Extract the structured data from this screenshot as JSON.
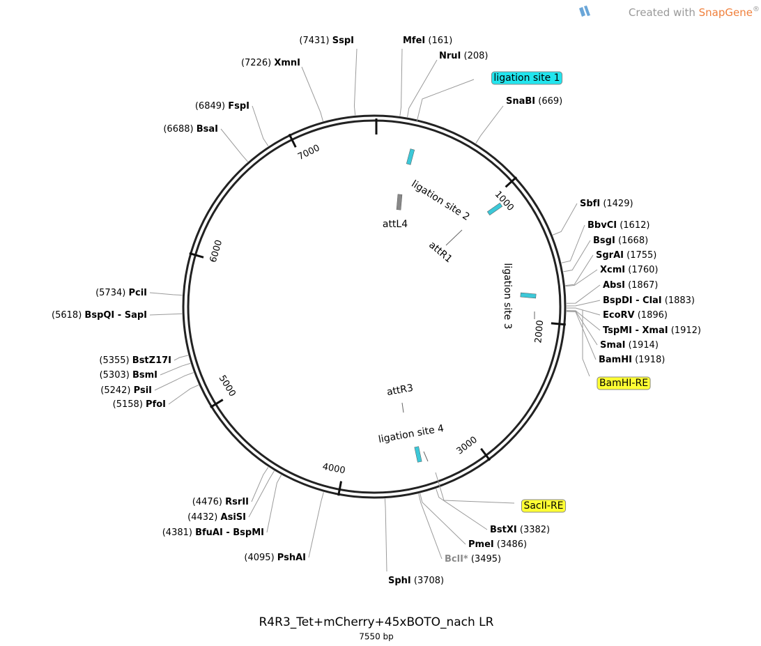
{
  "watermark": {
    "text": "Created with",
    "brand": "SnapGene",
    "mark": "®"
  },
  "plasmid": {
    "name": "R4R3_Tet+mCherry+45xBOTO_nach LR",
    "length": {
      "value": 7550,
      "label": "7550 bp"
    }
  },
  "ticks": [
    1000,
    2000,
    3000,
    4000,
    5000,
    6000,
    7000
  ],
  "sites": [
    {
      "name": "MfeI",
      "position": {
        "value": 161,
        "label": "(161)"
      }
    },
    {
      "name": "NruI",
      "position": {
        "value": 208,
        "label": "(208)"
      }
    },
    {
      "name": "SnaBI",
      "position": {
        "value": 669,
        "label": "(669)"
      }
    },
    {
      "name": "SbfI",
      "position": {
        "value": 1429,
        "label": "(1429)"
      }
    },
    {
      "name": "BbvCI",
      "position": {
        "value": 1612,
        "label": "(1612)"
      }
    },
    {
      "name": "BsgI",
      "position": {
        "value": 1668,
        "label": "(1668)"
      }
    },
    {
      "name": "SgrAI",
      "position": {
        "value": 1755,
        "label": "(1755)"
      }
    },
    {
      "name": "XcmI",
      "position": {
        "value": 1760,
        "label": "(1760)"
      }
    },
    {
      "name": "AbsI",
      "position": {
        "value": 1867,
        "label": "(1867)"
      }
    },
    {
      "name": "BspDI - ClaI",
      "position": {
        "value": 1883,
        "label": "(1883)"
      }
    },
    {
      "name": "EcoRV",
      "position": {
        "value": 1896,
        "label": "(1896)"
      }
    },
    {
      "name": "TspMI - XmaI",
      "position": {
        "value": 1912,
        "label": "(1912)"
      }
    },
    {
      "name": "SmaI",
      "position": {
        "value": 1914,
        "label": "(1914)"
      }
    },
    {
      "name": "BamHI",
      "position": {
        "value": 1918,
        "label": "(1918)"
      }
    },
    {
      "name": "BstXI",
      "position": {
        "value": 3382,
        "label": "(3382)"
      }
    },
    {
      "name": "PmeI",
      "position": {
        "value": 3486,
        "label": "(3486)"
      }
    },
    {
      "name": "BclI*",
      "position": {
        "value": 3495,
        "label": "(3495)"
      },
      "color": "#8a8a8a"
    },
    {
      "name": "SphI",
      "position": {
        "value": 3708,
        "label": "(3708)"
      }
    },
    {
      "name": "PshAI",
      "position": {
        "value": 4095,
        "label": "(4095)"
      }
    },
    {
      "name": "BfuAI - BspMI",
      "position": {
        "value": 4381,
        "label": "(4381)"
      }
    },
    {
      "name": "AsiSI",
      "position": {
        "value": 4432,
        "label": "(4432)"
      }
    },
    {
      "name": "RsrII",
      "position": {
        "value": 4476,
        "label": "(4476)"
      }
    },
    {
      "name": "PfoI",
      "position": {
        "value": 5158,
        "label": "(5158)"
      }
    },
    {
      "name": "PsiI",
      "position": {
        "value": 5242,
        "label": "(5242)"
      }
    },
    {
      "name": "BsmI",
      "position": {
        "value": 5303,
        "label": "(5303)"
      }
    },
    {
      "name": "BstZ17I",
      "position": {
        "value": 5355,
        "label": "(5355)"
      }
    },
    {
      "name": "BspQI - SapI",
      "position": {
        "value": 5618,
        "label": "(5618)"
      }
    },
    {
      "name": "PciI",
      "position": {
        "value": 5734,
        "label": "(5734)"
      }
    },
    {
      "name": "BsaI",
      "position": {
        "value": 6688,
        "label": "(6688)"
      }
    },
    {
      "name": "FspI",
      "position": {
        "value": 6849,
        "label": "(6849)"
      }
    },
    {
      "name": "XmnI",
      "position": {
        "value": 7226,
        "label": "(7226)"
      }
    },
    {
      "name": "SspI",
      "position": {
        "value": 7431,
        "label": "(7431)"
      }
    }
  ],
  "features": [
    {
      "label": "ligation site 1",
      "color": "#22e5ee"
    },
    {
      "label": "BamHI-RE",
      "color": "#ffff33"
    },
    {
      "label": "SacII-RE",
      "color": "#ffff33"
    },
    {
      "label": "ligation site 2"
    },
    {
      "label": "ligation site 3"
    },
    {
      "label": "ligation site 4"
    },
    {
      "label": "attL4"
    },
    {
      "label": "attR1"
    },
    {
      "label": "attR3"
    }
  ]
}
